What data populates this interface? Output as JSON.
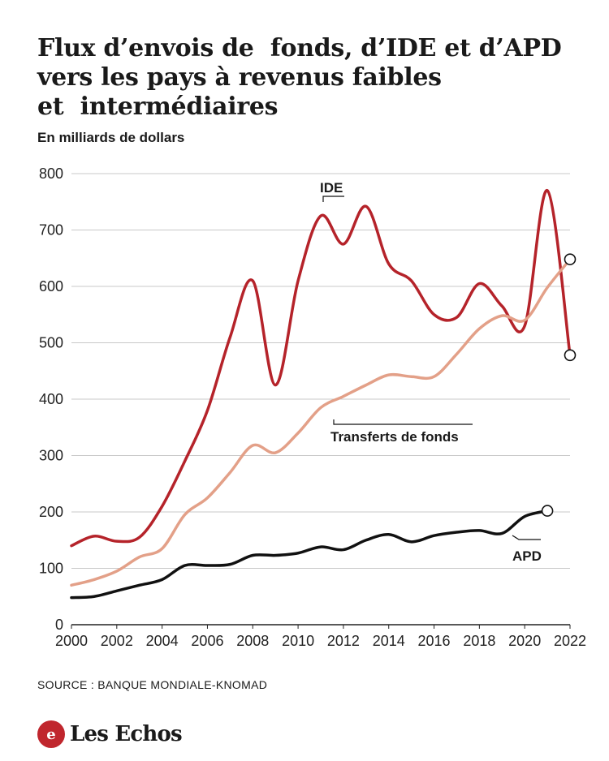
{
  "title_lines": [
    "Flux d’envois de  fonds, d’IDE et d’APD",
    "vers les pays à revenus faibles",
    "et  intermédiaires"
  ],
  "subtitle": "En milliards de dollars",
  "source": "SOURCE : BANQUE MONDIALE-KNOMAD",
  "logo": {
    "text": "Les Echos",
    "mark": "e"
  },
  "colors": {
    "ide": "#b5232a",
    "transferts": "#e3a088",
    "apd": "#111111",
    "grid": "#c8c8c8"
  },
  "chart_data": {
    "type": "line",
    "title": "Flux d’envois de  fonds, d’IDE et d’APD vers les pays à revenus faibles et  intermédiaires",
    "ylabel": "En milliards de dollars",
    "xlabel": "",
    "ylim": [
      0,
      800
    ],
    "xlim": [
      2000,
      2022
    ],
    "yticks": [
      "0",
      "100",
      "200",
      "300",
      "400",
      "500",
      "600",
      "700",
      "800"
    ],
    "xticks": [
      "2000",
      "2002",
      "2004",
      "2006",
      "2008",
      "2010",
      "2012",
      "2014",
      "2016",
      "2018",
      "2020",
      "2022"
    ],
    "grid": true,
    "series": [
      {
        "name": "IDE",
        "color": "#b5232a",
        "x": [
          2000,
          2001,
          2002,
          2003,
          2004,
          2005,
          2006,
          2007,
          2008,
          2009,
          2010,
          2011,
          2012,
          2013,
          2014,
          2015,
          2016,
          2017,
          2018,
          2019,
          2020,
          2021,
          2022
        ],
        "values": [
          140,
          157,
          148,
          155,
          210,
          290,
          380,
          510,
          610,
          425,
          610,
          725,
          675,
          742,
          640,
          610,
          550,
          545,
          605,
          565,
          530,
          770,
          478
        ]
      },
      {
        "name": "Transferts de fonds",
        "color": "#e3a088",
        "x": [
          2000,
          2001,
          2002,
          2003,
          2004,
          2005,
          2006,
          2007,
          2008,
          2009,
          2010,
          2011,
          2012,
          2013,
          2014,
          2015,
          2016,
          2017,
          2018,
          2019,
          2020,
          2021,
          2022
        ],
        "values": [
          70,
          80,
          95,
          120,
          135,
          195,
          225,
          270,
          318,
          305,
          340,
          385,
          405,
          425,
          443,
          440,
          440,
          480,
          525,
          548,
          540,
          598,
          648
        ]
      },
      {
        "name": "APD",
        "color": "#111111",
        "x": [
          2000,
          2001,
          2002,
          2003,
          2004,
          2005,
          2006,
          2007,
          2008,
          2009,
          2010,
          2011,
          2012,
          2013,
          2014,
          2015,
          2016,
          2017,
          2018,
          2019,
          2020,
          2021
        ],
        "values": [
          48,
          50,
          60,
          70,
          80,
          105,
          105,
          107,
          123,
          123,
          127,
          138,
          133,
          150,
          160,
          147,
          158,
          164,
          167,
          162,
          192,
          202
        ]
      }
    ]
  }
}
